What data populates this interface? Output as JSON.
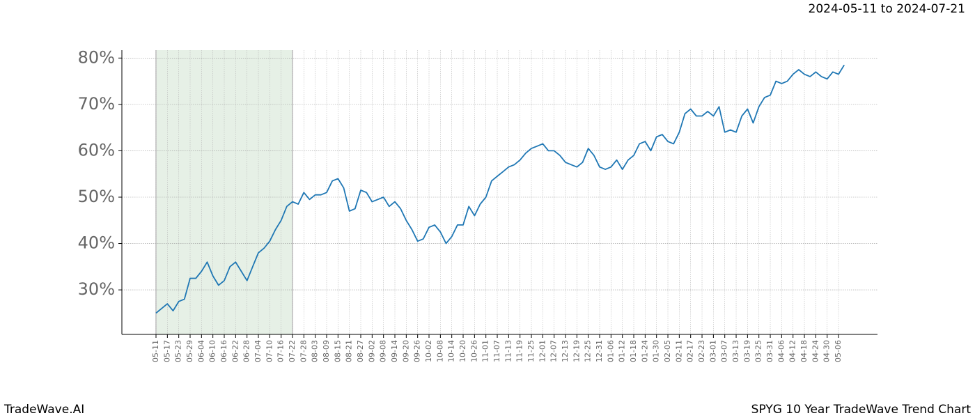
{
  "chart_data": {
    "type": "line",
    "title": "SPYG 10 Year TradeWave Trend Chart",
    "subtitle": "2024-05-11 to 2024-07-21",
    "source": "TradeWave.AI",
    "categories": [
      "05-11",
      null,
      "05-17",
      null,
      "05-23",
      null,
      "05-29",
      null,
      "06-04",
      null,
      "06-10",
      null,
      "06-16",
      null,
      "06-22",
      null,
      "06-28",
      null,
      "07-04",
      null,
      "07-10",
      null,
      "07-16",
      null,
      "07-22",
      null,
      "07-28",
      null,
      "08-03",
      null,
      "08-09",
      null,
      "08-15",
      null,
      "08-21",
      null,
      "08-27",
      null,
      "09-02",
      null,
      "09-08",
      null,
      "09-14",
      null,
      "09-20",
      null,
      "09-26",
      null,
      "10-02",
      null,
      "10-08",
      null,
      "10-14",
      null,
      "10-20",
      null,
      "10-26",
      null,
      "11-01",
      null,
      "11-07",
      null,
      "11-13",
      null,
      "11-19",
      null,
      "11-25",
      null,
      "12-01",
      null,
      "12-07",
      null,
      "12-13",
      null,
      "12-19",
      null,
      "12-25",
      null,
      "12-31",
      null,
      "01-06",
      null,
      "01-12",
      null,
      "01-18",
      null,
      "01-24",
      null,
      "01-30",
      null,
      "02-05",
      null,
      "02-11",
      null,
      "02-17",
      null,
      "02-23",
      null,
      "03-01",
      null,
      "03-07",
      null,
      "03-13",
      null,
      "03-19",
      null,
      "03-25",
      null,
      "03-31",
      null,
      "04-06",
      null,
      "04-12",
      null,
      "04-18",
      null,
      "04-24",
      null,
      "04-30",
      null,
      "05-06",
      null
    ],
    "series": [
      {
        "color": "#1f77b4",
        "values": [
          25,
          26,
          27,
          25.5,
          27.5,
          28,
          32.5,
          32.5,
          34,
          36,
          33,
          31,
          32,
          35,
          36,
          34,
          32,
          35,
          38,
          39,
          40.5,
          43,
          45,
          48,
          49,
          48.5,
          51,
          49.5,
          50.5,
          50.5,
          51,
          53.5,
          54,
          52,
          47,
          47.5,
          51.5,
          51,
          49,
          49.5,
          50,
          48,
          49,
          47.5,
          45,
          43,
          40.5,
          41,
          43.5,
          44,
          42.5,
          40,
          41.5,
          44,
          44,
          48,
          46,
          48.5,
          50,
          53.5,
          54.5,
          55.5,
          56.5,
          57,
          58,
          59.5,
          60.5,
          61,
          61.5,
          60,
          60,
          59,
          57.5,
          57,
          56.5,
          57.5,
          60.5,
          59,
          56.5,
          56,
          56.5,
          58,
          56,
          58,
          59,
          61.5,
          62,
          60,
          63,
          63.5,
          62,
          61.5,
          64,
          68,
          69,
          67.5,
          67.5,
          68.5,
          67.5,
          69.5,
          64,
          64.5,
          64,
          67.5,
          69,
          66,
          69.5,
          71.5,
          72,
          75,
          74.5,
          75,
          76.5,
          77.5,
          76.5,
          76,
          77,
          76,
          75.5,
          77,
          76.5,
          78.5
        ]
      }
    ],
    "highlight": {
      "from": "05-11",
      "to": "07-22",
      "color": "#e6f0e6"
    },
    "ylim": [
      20.4,
      81.7
    ],
    "yticks": [
      {
        "value": 30,
        "label": "30%"
      },
      {
        "value": 40,
        "label": "40%"
      },
      {
        "value": 50,
        "label": "50%"
      },
      {
        "value": 60,
        "label": "60%"
      },
      {
        "value": 70,
        "label": "70%"
      },
      {
        "value": 80,
        "label": "80%"
      }
    ],
    "grid": true
  }
}
